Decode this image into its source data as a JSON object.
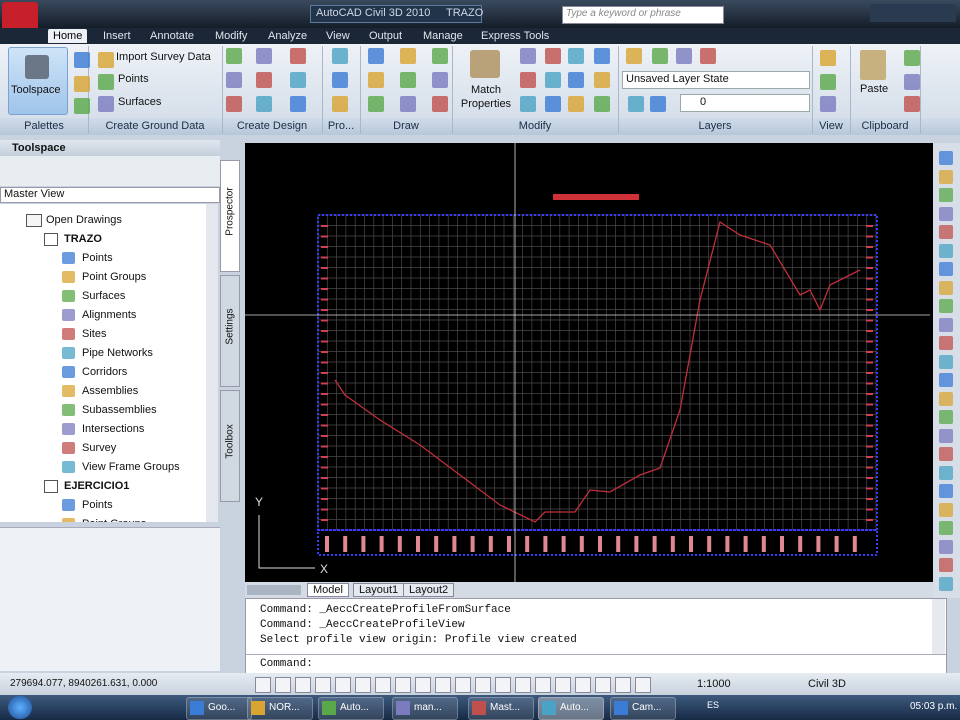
{
  "title_bar": {
    "app": "AutoCAD Civil 3D 2010",
    "drawing": "TRAZO",
    "search": "Type a keyword or phrase"
  },
  "ribbon": {
    "tabs": [
      "Home",
      "Insert",
      "Annotate",
      "Modify",
      "Analyze",
      "View",
      "Output",
      "Manage",
      "Express Tools"
    ],
    "buttons": {
      "toolspace": "Toolspace",
      "import_survey": "Import Survey Data",
      "points": "Points",
      "surfaces": "Surfaces",
      "match_properties": "Match Properties",
      "layer_state": "Unsaved Layer State",
      "layer": "0",
      "paste": "Paste"
    },
    "panels": [
      "Palettes",
      "Create Ground Data",
      "Create Design",
      "Pro...",
      "Draw",
      "Modify",
      "Layers",
      "View",
      "Clipboard"
    ]
  },
  "toolspace": {
    "title": "Toolspace",
    "view": "Master View",
    "side_tabs": [
      "Prospector",
      "Settings",
      "Toolbox"
    ],
    "tree": {
      "root": "Open Drawings",
      "drawings": [
        {
          "name": "TRAZO",
          "items": [
            "Points",
            "Point Groups",
            "Surfaces",
            "Alignments",
            "Sites",
            "Pipe Networks",
            "Corridors",
            "Assemblies",
            "Subassemblies",
            "Intersections",
            "Survey",
            "View Frame Groups"
          ]
        },
        {
          "name": "EJERCICIO1",
          "items": [
            "Points",
            "Point Groups"
          ]
        }
      ]
    }
  },
  "drawing": {
    "axis_y": "Y",
    "axis_x": "X",
    "layout_tabs": [
      "Model",
      "Layout1",
      "Layout2"
    ]
  },
  "command_line": {
    "history": [
      "Command:  _AeccCreateProfileFromSurface",
      "Command:  _AeccCreateProfileView",
      "Select profile view origin: Profile view created"
    ],
    "prompt": "Command:"
  },
  "status_bar": {
    "coordinates": "279694.077, 8940261.631, 0.000",
    "scale": "1:1000",
    "workspace": "Civil 3D"
  },
  "taskbar": {
    "items": [
      "Goo...",
      "NOR...",
      "Auto...",
      "man...",
      "Mast...",
      "Auto...",
      "Cam..."
    ],
    "language": "ES",
    "clock": "05:03 p.m."
  }
}
